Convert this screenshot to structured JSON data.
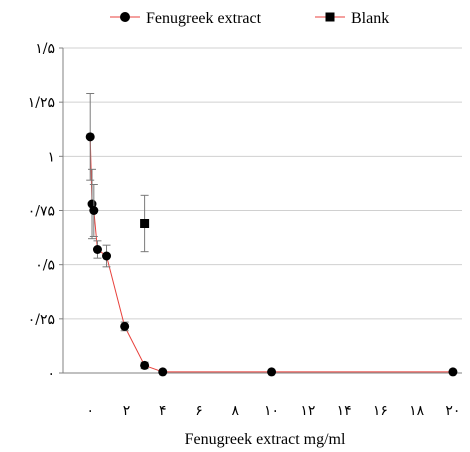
{
  "chart_data": {
    "type": "scatter",
    "title": "",
    "xlabel": "Fenugreek extract mg/ml",
    "ylabel": "",
    "xlim": [
      -1.5,
      20.5
    ],
    "ylim": [
      0,
      1.5
    ],
    "grid": "horizontal",
    "legend_position": "top",
    "x_ticks": [
      {
        "value": 0,
        "label": "۰"
      },
      {
        "value": 2,
        "label": "۲"
      },
      {
        "value": 4,
        "label": "۴"
      },
      {
        "value": 6,
        "label": "۶"
      },
      {
        "value": 8,
        "label": "۸"
      },
      {
        "value": 10,
        "label": "۱۰"
      },
      {
        "value": 12,
        "label": "۱۲"
      },
      {
        "value": 14,
        "label": "۱۴"
      },
      {
        "value": 16,
        "label": "۱۶"
      },
      {
        "value": 18,
        "label": "۱۸"
      },
      {
        "value": 20,
        "label": "۲۰"
      }
    ],
    "y_ticks": [
      {
        "value": 0,
        "label": "۰"
      },
      {
        "value": 0.25,
        "label": "۰/۲۵"
      },
      {
        "value": 0.5,
        "label": "۰/۵"
      },
      {
        "value": 0.75,
        "label": "۰/۷۵"
      },
      {
        "value": 1,
        "label": "۱"
      },
      {
        "value": 1.25,
        "label": "۱/۲۵"
      },
      {
        "value": 1.5,
        "label": "۱/۵"
      }
    ],
    "series": [
      {
        "name": "Fenugreek extract",
        "marker": "circle",
        "line_color": "#e8413c",
        "marker_color": "#000000",
        "x": [
          0,
          0.1,
          0.2,
          0.4,
          0.9,
          1.9,
          3.0,
          4.0,
          10.0,
          20.0
        ],
        "y": [
          1.09,
          0.78,
          0.75,
          0.57,
          0.54,
          0.215,
          0.035,
          0.005,
          0.005,
          0.005
        ],
        "error": [
          0.2,
          0.16,
          0.12,
          0.04,
          0.05,
          0.02,
          0.015,
          0.0,
          0.0,
          0.0
        ]
      },
      {
        "name": "Blank",
        "marker": "square",
        "line_color": "#e8413c",
        "marker_color": "#000000",
        "x": [
          3.0
        ],
        "y": [
          0.69
        ],
        "error": [
          0.13
        ]
      }
    ]
  }
}
